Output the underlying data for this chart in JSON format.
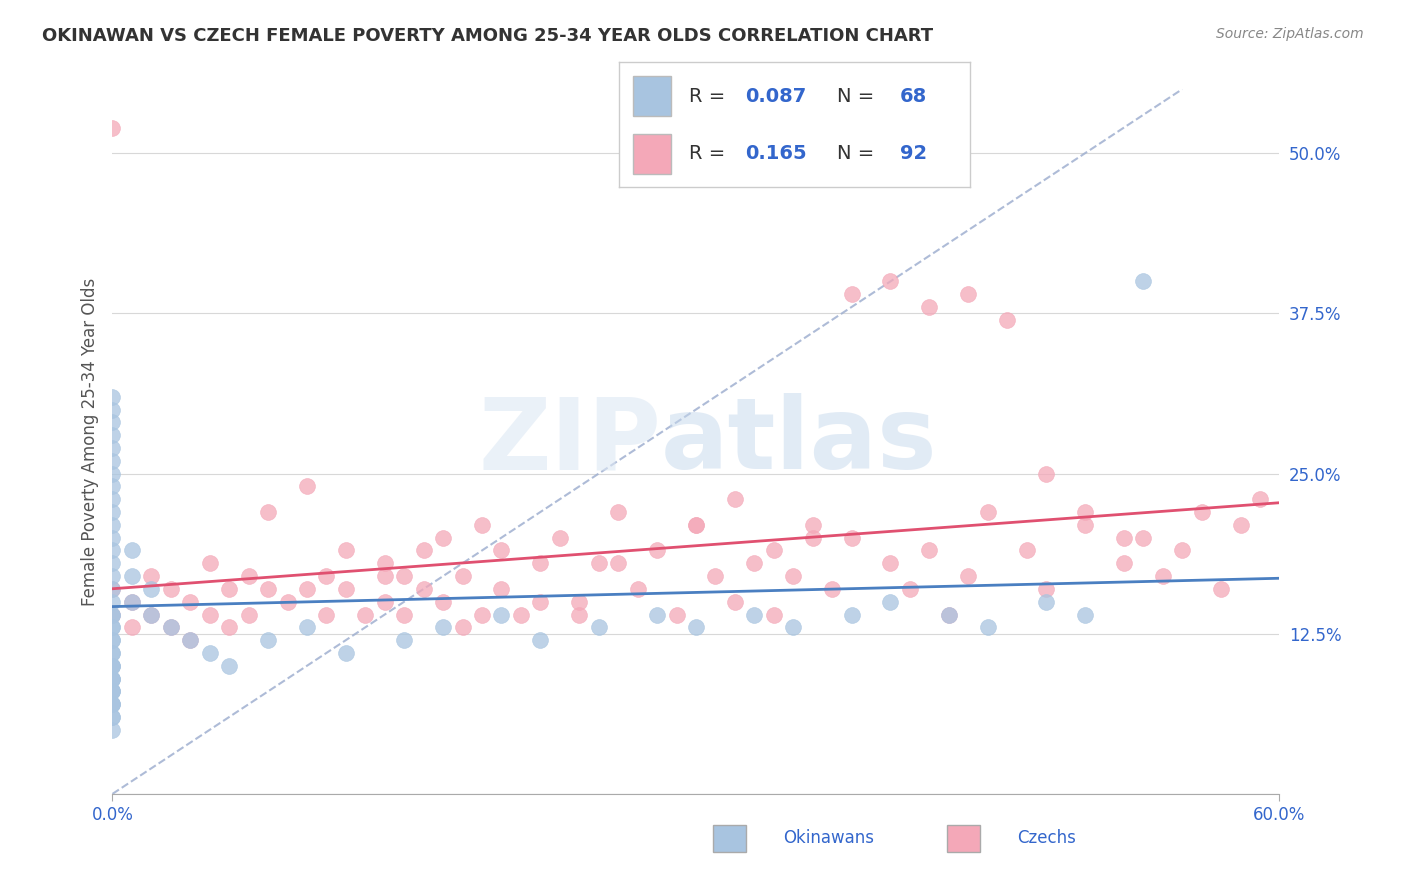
{
  "title": "OKINAWAN VS CZECH FEMALE POVERTY AMONG 25-34 YEAR OLDS CORRELATION CHART",
  "source": "Source: ZipAtlas.com",
  "ylabel": "Female Poverty Among 25-34 Year Olds",
  "xlim": [
    0.0,
    0.6
  ],
  "ylim": [
    0.0,
    0.55
  ],
  "okinawan_color": "#a8c4e0",
  "czech_color": "#f4a8b8",
  "okinawan_line_color": "#4a7fc1",
  "czech_line_color": "#e05070",
  "diagonal_color": "#a0b0d0",
  "legend_R_okinawan": "0.087",
  "legend_N_okinawan": "68",
  "legend_R_czech": "0.165",
  "legend_N_czech": "92",
  "okinawan_x": [
    0.0,
    0.0,
    0.0,
    0.0,
    0.0,
    0.0,
    0.0,
    0.0,
    0.0,
    0.0,
    0.0,
    0.0,
    0.0,
    0.0,
    0.0,
    0.0,
    0.0,
    0.0,
    0.0,
    0.0,
    0.0,
    0.0,
    0.0,
    0.0,
    0.0,
    0.0,
    0.0,
    0.0,
    0.0,
    0.0,
    0.0,
    0.0,
    0.0,
    0.0,
    0.0,
    0.0,
    0.0,
    0.0,
    0.0,
    0.0,
    0.01,
    0.01,
    0.01,
    0.02,
    0.02,
    0.03,
    0.04,
    0.05,
    0.06,
    0.08,
    0.1,
    0.12,
    0.15,
    0.17,
    0.2,
    0.22,
    0.25,
    0.28,
    0.3,
    0.33,
    0.35,
    0.38,
    0.4,
    0.43,
    0.45,
    0.48,
    0.5,
    0.53
  ],
  "okinawan_y": [
    0.05,
    0.07,
    0.08,
    0.09,
    0.1,
    0.11,
    0.12,
    0.13,
    0.14,
    0.15,
    0.16,
    0.17,
    0.18,
    0.19,
    0.2,
    0.21,
    0.22,
    0.23,
    0.24,
    0.25,
    0.26,
    0.27,
    0.28,
    0.29,
    0.3,
    0.31,
    0.08,
    0.1,
    0.12,
    0.14,
    0.06,
    0.07,
    0.09,
    0.11,
    0.13,
    0.08,
    0.1,
    0.07,
    0.09,
    0.06,
    0.15,
    0.17,
    0.19,
    0.14,
    0.16,
    0.13,
    0.12,
    0.11,
    0.1,
    0.12,
    0.13,
    0.11,
    0.12,
    0.13,
    0.14,
    0.12,
    0.13,
    0.14,
    0.13,
    0.14,
    0.13,
    0.14,
    0.15,
    0.14,
    0.13,
    0.15,
    0.14,
    0.4
  ],
  "czech_x": [
    0.0,
    0.0,
    0.0,
    0.01,
    0.01,
    0.02,
    0.02,
    0.03,
    0.03,
    0.04,
    0.04,
    0.05,
    0.05,
    0.06,
    0.06,
    0.07,
    0.07,
    0.08,
    0.08,
    0.09,
    0.1,
    0.1,
    0.11,
    0.11,
    0.12,
    0.12,
    0.13,
    0.14,
    0.14,
    0.15,
    0.15,
    0.16,
    0.17,
    0.17,
    0.18,
    0.19,
    0.19,
    0.2,
    0.21,
    0.22,
    0.23,
    0.24,
    0.25,
    0.26,
    0.27,
    0.28,
    0.29,
    0.3,
    0.31,
    0.32,
    0.33,
    0.34,
    0.35,
    0.36,
    0.37,
    0.38,
    0.4,
    0.41,
    0.42,
    0.43,
    0.44,
    0.45,
    0.47,
    0.48,
    0.5,
    0.52,
    0.53,
    0.54,
    0.55,
    0.57,
    0.24,
    0.26,
    0.5,
    0.52,
    0.2,
    0.22,
    0.14,
    0.16,
    0.18,
    0.3,
    0.32,
    0.34,
    0.36,
    0.38,
    0.4,
    0.42,
    0.44,
    0.46,
    0.48,
    0.56,
    0.58,
    0.59
  ],
  "czech_y": [
    0.14,
    0.16,
    0.52,
    0.15,
    0.13,
    0.17,
    0.14,
    0.16,
    0.13,
    0.15,
    0.12,
    0.18,
    0.14,
    0.16,
    0.13,
    0.17,
    0.14,
    0.16,
    0.22,
    0.15,
    0.16,
    0.24,
    0.17,
    0.14,
    0.19,
    0.16,
    0.14,
    0.18,
    0.15,
    0.17,
    0.14,
    0.19,
    0.15,
    0.2,
    0.17,
    0.14,
    0.21,
    0.16,
    0.14,
    0.18,
    0.2,
    0.15,
    0.18,
    0.22,
    0.16,
    0.19,
    0.14,
    0.21,
    0.17,
    0.15,
    0.18,
    0.14,
    0.17,
    0.21,
    0.16,
    0.2,
    0.18,
    0.16,
    0.19,
    0.14,
    0.17,
    0.22,
    0.19,
    0.16,
    0.21,
    0.18,
    0.2,
    0.17,
    0.19,
    0.16,
    0.14,
    0.18,
    0.22,
    0.2,
    0.19,
    0.15,
    0.17,
    0.16,
    0.13,
    0.21,
    0.23,
    0.19,
    0.2,
    0.39,
    0.4,
    0.38,
    0.39,
    0.37,
    0.25,
    0.22,
    0.21,
    0.23
  ]
}
